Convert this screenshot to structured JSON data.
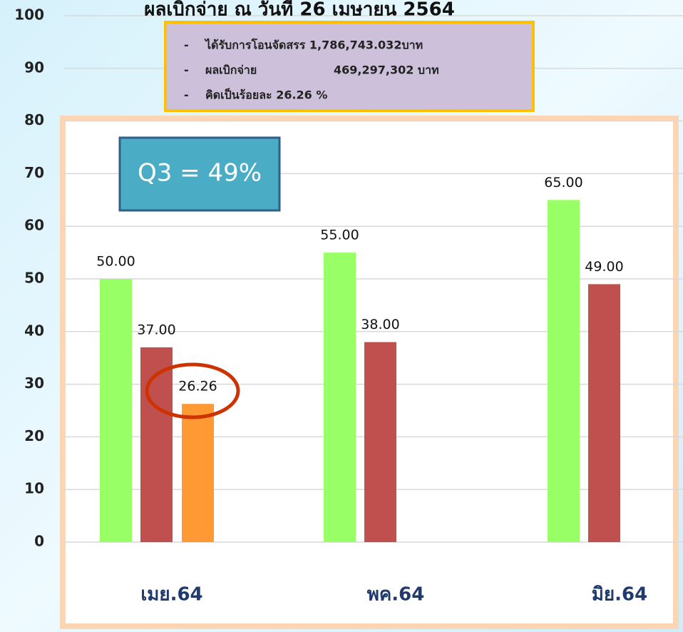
{
  "chart_data": {
    "type": "bar",
    "title": "ผลเบิกจ่าย ณ วันที่ 26 เมษายน 2564",
    "categories": [
      "เมย.64",
      "พค.64",
      "มิย.64"
    ],
    "series": [
      {
        "color": "#99ff66",
        "values": [
          50,
          55,
          65
        ],
        "value_labels": [
          "50.00",
          "55.00",
          "65.00"
        ]
      },
      {
        "color": "#c0504d",
        "values": [
          37,
          38,
          49
        ],
        "value_labels": [
          "37.00",
          "38.00",
          "49.00"
        ]
      },
      {
        "color": "#ff9933",
        "values": [
          26.26,
          null,
          null
        ],
        "value_labels": [
          "26.26",
          null,
          null
        ]
      }
    ],
    "ylim": [
      0,
      100
    ],
    "yticks": [
      0,
      10,
      20,
      30,
      40,
      50,
      60,
      70,
      80,
      90,
      100
    ],
    "grid": true,
    "annotations": {
      "q3": "Q3 = 49%",
      "info": [
        {
          "bullet": "-",
          "text": "ได้รับการโอนจัดสรร 1,786,743.032บาท"
        },
        {
          "bullet": "-",
          "text": "ผลเบิกจ่าย",
          "amount": "469,297,302 บาท"
        },
        {
          "bullet": "-",
          "text": "คิดเป็นร้อยละ 26.26 %",
          "color": "#ff0000"
        }
      ]
    }
  }
}
